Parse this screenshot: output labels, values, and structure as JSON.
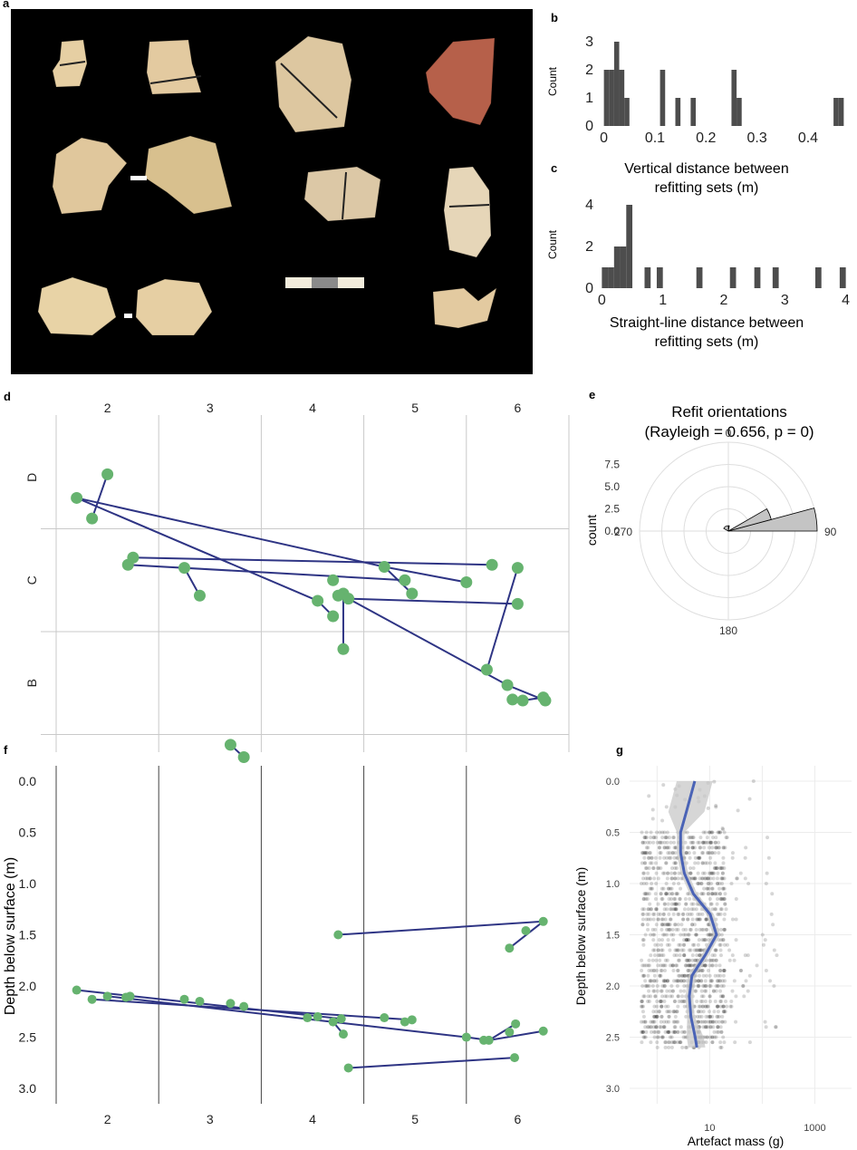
{
  "panel_labels": {
    "a": "a",
    "b": "b",
    "c": "c",
    "d": "d",
    "e": "e",
    "f": "f",
    "g": "g"
  },
  "photo": {
    "background": "#000000",
    "fragment_colors": [
      "#e6cfa3",
      "#e3caa0",
      "#ddc7a0",
      "#b6604a",
      "#e0c79c",
      "#d8c08e",
      "#dcc8a6",
      "#e6d6b8",
      "#e8d3a6"
    ],
    "scale_bar_colors": [
      "#f2ecdc",
      "#8a8a8a"
    ]
  },
  "chart_data": [
    {
      "id": "b",
      "type": "bar",
      "title": "",
      "xlabel": "Vertical distance between refitting sets (m)",
      "xlabel_lines": [
        "Vertical distance between",
        "refitting sets (m)"
      ],
      "ylabel": "Count",
      "xlim": [
        -0.01,
        0.48
      ],
      "ylim": [
        0,
        3
      ],
      "xticks": [
        0,
        0.1,
        0.2,
        0.3,
        0.4
      ],
      "xtick_labels": [
        "0",
        "0.1",
        "0.2",
        "0.3",
        "0.4"
      ],
      "yticks": [
        0,
        1,
        2,
        3
      ],
      "bin_width": 0.01,
      "bars": [
        [
          0.0,
          2
        ],
        [
          0.01,
          2
        ],
        [
          0.02,
          3
        ],
        [
          0.03,
          2
        ],
        [
          0.04,
          1
        ],
        [
          0.11,
          2
        ],
        [
          0.14,
          1
        ],
        [
          0.17,
          1
        ],
        [
          0.25,
          2
        ],
        [
          0.26,
          1
        ],
        [
          0.45,
          1
        ],
        [
          0.46,
          1
        ]
      ],
      "bar_color": "#4d4d4d"
    },
    {
      "id": "c",
      "type": "bar",
      "title": "",
      "xlabel": "Straight-line distance between refitting sets (m)",
      "xlabel_lines": [
        "Straight-line distance between",
        "refitting sets (m)"
      ],
      "ylabel": "Count",
      "xlim": [
        -0.05,
        4.05
      ],
      "ylim": [
        0,
        4
      ],
      "xticks": [
        0,
        1,
        2,
        3,
        4
      ],
      "xtick_labels": [
        "0",
        "1",
        "2",
        "3",
        "4"
      ],
      "yticks": [
        0,
        2,
        4
      ],
      "bin_width": 0.1,
      "bars": [
        [
          0.0,
          1
        ],
        [
          0.1,
          1
        ],
        [
          0.2,
          2
        ],
        [
          0.3,
          2
        ],
        [
          0.4,
          4
        ],
        [
          0.7,
          1
        ],
        [
          0.9,
          1
        ],
        [
          1.55,
          1
        ],
        [
          2.1,
          1
        ],
        [
          2.5,
          1
        ],
        [
          2.8,
          1
        ],
        [
          3.5,
          1
        ],
        [
          3.9,
          1
        ]
      ],
      "bar_color": "#4d4d4d"
    },
    {
      "id": "d",
      "type": "scatter",
      "title": "",
      "xlim": [
        1.5,
        6.5
      ],
      "ylim_label": "grid rows",
      "xticks": [
        2,
        3,
        4,
        5,
        6
      ],
      "xtick_labels": [
        "2",
        "3",
        "4",
        "5",
        "6"
      ],
      "row_labels": [
        "D",
        "C",
        "B"
      ],
      "grid": true,
      "point_color": "#66b36f",
      "line_color": "#2e3484",
      "points": [
        [
          2.0,
          0.47
        ],
        [
          1.7,
          0.7
        ],
        [
          1.85,
          0.9
        ],
        [
          2.25,
          1.28
        ],
        [
          2.2,
          1.35
        ],
        [
          2.75,
          1.38
        ],
        [
          2.9,
          1.65
        ],
        [
          4.2,
          1.5
        ],
        [
          4.3,
          1.63
        ],
        [
          4.25,
          1.65
        ],
        [
          4.35,
          1.68
        ],
        [
          4.05,
          1.7
        ],
        [
          4.2,
          1.85
        ],
        [
          4.3,
          2.17
        ],
        [
          4.7,
          1.37
        ],
        [
          4.9,
          1.5
        ],
        [
          4.97,
          1.63
        ],
        [
          5.5,
          1.52
        ],
        [
          5.75,
          1.35
        ],
        [
          6.0,
          1.38
        ],
        [
          6.0,
          1.73
        ],
        [
          5.7,
          2.37
        ],
        [
          5.9,
          2.52
        ],
        [
          5.95,
          2.66
        ],
        [
          6.05,
          2.67
        ],
        [
          6.25,
          2.64
        ],
        [
          6.27,
          2.67
        ],
        [
          3.2,
          3.1
        ],
        [
          3.33,
          3.22
        ]
      ],
      "segments": [
        [
          [
            2.0,
            0.47
          ],
          [
            1.85,
            0.9
          ]
        ],
        [
          [
            1.7,
            0.7
          ],
          [
            4.7,
            1.37
          ]
        ],
        [
          [
            1.7,
            0.7
          ],
          [
            4.05,
            1.7
          ]
        ],
        [
          [
            2.25,
            1.28
          ],
          [
            5.75,
            1.35
          ]
        ],
        [
          [
            2.2,
            1.35
          ],
          [
            4.9,
            1.5
          ]
        ],
        [
          [
            4.7,
            1.37
          ],
          [
            4.97,
            1.63
          ]
        ],
        [
          [
            4.7,
            1.37
          ],
          [
            5.5,
            1.52
          ]
        ],
        [
          [
            2.75,
            1.38
          ],
          [
            2.9,
            1.65
          ]
        ],
        [
          [
            4.05,
            1.7
          ],
          [
            4.2,
            1.85
          ]
        ],
        [
          [
            4.25,
            1.65
          ],
          [
            4.35,
            1.68
          ]
        ],
        [
          [
            4.3,
            1.63
          ],
          [
            4.3,
            2.17
          ]
        ],
        [
          [
            4.35,
            1.68
          ],
          [
            6.0,
            1.73
          ]
        ],
        [
          [
            4.35,
            1.68
          ],
          [
            5.9,
            2.52
          ]
        ],
        [
          [
            6.0,
            1.38
          ],
          [
            5.7,
            2.37
          ]
        ],
        [
          [
            5.9,
            2.52
          ],
          [
            6.27,
            2.67
          ]
        ],
        [
          [
            5.95,
            2.66
          ],
          [
            6.05,
            2.67
          ]
        ],
        [
          [
            6.05,
            2.67
          ],
          [
            6.25,
            2.64
          ]
        ],
        [
          [
            3.2,
            3.1
          ],
          [
            3.33,
            3.22
          ]
        ]
      ]
    },
    {
      "id": "e",
      "type": "polar-bar",
      "title": "Refit orientations",
      "subtitle": "(Rayleigh = 0.656,  p = 0)",
      "ylabel": "count",
      "rlim": [
        0,
        10
      ],
      "rticks": [
        0,
        2.5,
        5,
        7.5
      ],
      "rtick_labels": [
        "0.0",
        "2.5",
        "5.0",
        "7.5"
      ],
      "angle_labels": [
        "0",
        "90",
        "180",
        "270"
      ],
      "wedges": [
        [
          75,
          90,
          10
        ],
        [
          60,
          75,
          5
        ],
        [
          0,
          10,
          0.6
        ],
        [
          300,
          360,
          0.6
        ]
      ],
      "wedge_color": "#c4c4c4"
    },
    {
      "id": "f",
      "type": "line",
      "title": "",
      "ylabel": "Depth below surface (m)",
      "xlim": [
        1.5,
        6.5
      ],
      "ylim": [
        3.15,
        -0.15
      ],
      "xticks": [
        2,
        3,
        4,
        5,
        6
      ],
      "xtick_labels": [
        "2",
        "3",
        "4",
        "5",
        "6"
      ],
      "yticks": [
        0.0,
        0.5,
        1.0,
        1.5,
        2.0,
        2.5,
        3.0
      ],
      "ytick_labels": [
        "0.0",
        "0.5",
        "1.0",
        "1.5",
        "2.0",
        "2.5",
        "3.0"
      ],
      "point_color": "#66b36f",
      "line_color": "#2e3484",
      "points": [
        [
          4.25,
          1.5
        ],
        [
          6.25,
          1.37
        ],
        [
          6.08,
          1.46
        ],
        [
          5.92,
          1.63
        ],
        [
          1.7,
          2.04
        ],
        [
          1.85,
          2.13
        ],
        [
          2.0,
          2.1
        ],
        [
          2.18,
          2.11
        ],
        [
          2.22,
          2.1
        ],
        [
          2.75,
          2.13
        ],
        [
          2.9,
          2.15
        ],
        [
          3.2,
          2.17
        ],
        [
          3.33,
          2.2
        ],
        [
          3.95,
          2.31
        ],
        [
          4.05,
          2.3
        ],
        [
          4.2,
          2.35
        ],
        [
          4.28,
          2.32
        ],
        [
          4.3,
          2.47
        ],
        [
          4.7,
          2.31
        ],
        [
          4.9,
          2.35
        ],
        [
          4.97,
          2.33
        ],
        [
          5.5,
          2.5
        ],
        [
          5.67,
          2.53
        ],
        [
          5.72,
          2.53
        ],
        [
          5.92,
          2.45
        ],
        [
          5.98,
          2.37
        ],
        [
          6.25,
          2.44
        ],
        [
          4.35,
          2.8
        ],
        [
          5.97,
          2.7
        ]
      ],
      "segments": [
        [
          [
            4.25,
            1.5
          ],
          [
            6.25,
            1.37
          ]
        ],
        [
          [
            6.25,
            1.37
          ],
          [
            5.92,
            1.63
          ]
        ],
        [
          [
            1.7,
            2.04
          ],
          [
            4.28,
            2.32
          ]
        ],
        [
          [
            1.85,
            2.13
          ],
          [
            4.97,
            2.33
          ]
        ],
        [
          [
            2.0,
            2.1
          ],
          [
            5.5,
            2.5
          ]
        ],
        [
          [
            5.5,
            2.5
          ],
          [
            5.72,
            2.53
          ]
        ],
        [
          [
            5.72,
            2.53
          ],
          [
            5.98,
            2.37
          ]
        ],
        [
          [
            5.72,
            2.53
          ],
          [
            6.25,
            2.44
          ]
        ],
        [
          [
            4.2,
            2.35
          ],
          [
            4.3,
            2.47
          ]
        ],
        [
          [
            4.35,
            2.8
          ],
          [
            5.97,
            2.7
          ]
        ]
      ]
    },
    {
      "id": "g",
      "type": "scatter",
      "title": "",
      "xlabel": "Artefact mass (g)",
      "ylabel": "Depth below surface (m)",
      "x_scale": "log10",
      "xlim": [
        0.3,
        5000
      ],
      "ylim": [
        3.15,
        -0.15
      ],
      "xticks": [
        10,
        1000
      ],
      "xtick_labels": [
        "10",
        "1000"
      ],
      "yticks": [
        0.0,
        0.5,
        1.0,
        1.5,
        2.0,
        2.5,
        3.0
      ],
      "ytick_labels": [
        "0.0",
        "0.5",
        "1.0",
        "1.5",
        "2.0",
        "2.5",
        "3.0"
      ],
      "points_note": "about 1,500 artefacts, mass roughly 0.5-60 g between 0.5-2.6 m depth",
      "trend": {
        "depth": [
          0.0,
          0.3,
          0.5,
          0.7,
          0.9,
          1.1,
          1.3,
          1.5,
          1.7,
          1.9,
          2.1,
          2.3,
          2.5,
          2.6
        ],
        "mass": [
          5.2,
          3.6,
          2.8,
          2.8,
          3.3,
          4.9,
          10.2,
          13.5,
          8.2,
          4.6,
          4.1,
          4.4,
          5.3,
          5.7
        ]
      },
      "trend_color": "#4a63b6",
      "band_color": "#c8c8c8"
    }
  ]
}
